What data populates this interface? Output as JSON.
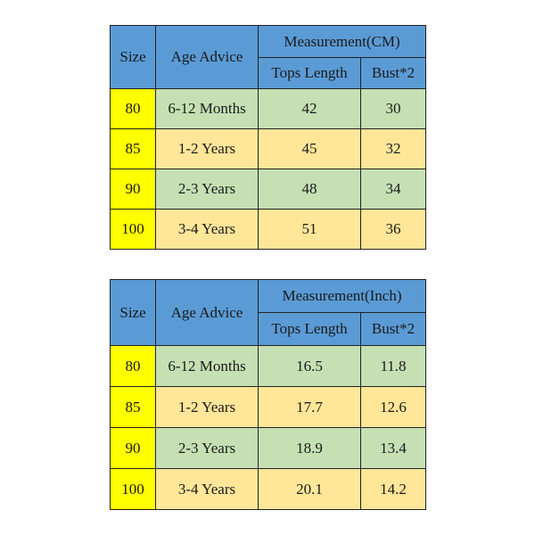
{
  "tables": [
    {
      "header": {
        "size": "Size",
        "age": "Age Advice",
        "measurement": "Measurement(CM)",
        "tops_length": "Tops Length",
        "bust": "Bust*2"
      },
      "rows": [
        {
          "size": "80",
          "age": "6-12 Months",
          "tops_length": "42",
          "bust": "30"
        },
        {
          "size": "85",
          "age": "1-2  Years",
          "tops_length": "45",
          "bust": "32"
        },
        {
          "size": "90",
          "age": "2-3  Years",
          "tops_length": "48",
          "bust": "34"
        },
        {
          "size": "100",
          "age": "3-4  Years",
          "tops_length": "51",
          "bust": "36"
        }
      ]
    },
    {
      "header": {
        "size": "Size",
        "age": "Age Advice",
        "measurement": "Measurement(Inch)",
        "tops_length": "Tops Length",
        "bust": "Bust*2"
      },
      "rows": [
        {
          "size": "80",
          "age": "6-12 Months",
          "tops_length": "16.5",
          "bust": "11.8"
        },
        {
          "size": "85",
          "age": "1-2  Years",
          "tops_length": "17.7",
          "bust": "12.6"
        },
        {
          "size": "90",
          "age": "2-3  Years",
          "tops_length": "18.9",
          "bust": "13.4"
        },
        {
          "size": "100",
          "age": "3-4  Years",
          "tops_length": "20.1",
          "bust": "14.2"
        }
      ]
    }
  ],
  "colors": {
    "header": "#5b9bd5",
    "size_column": "#ffff00",
    "row_green": "#c6e0b4",
    "row_tan": "#ffe699"
  }
}
